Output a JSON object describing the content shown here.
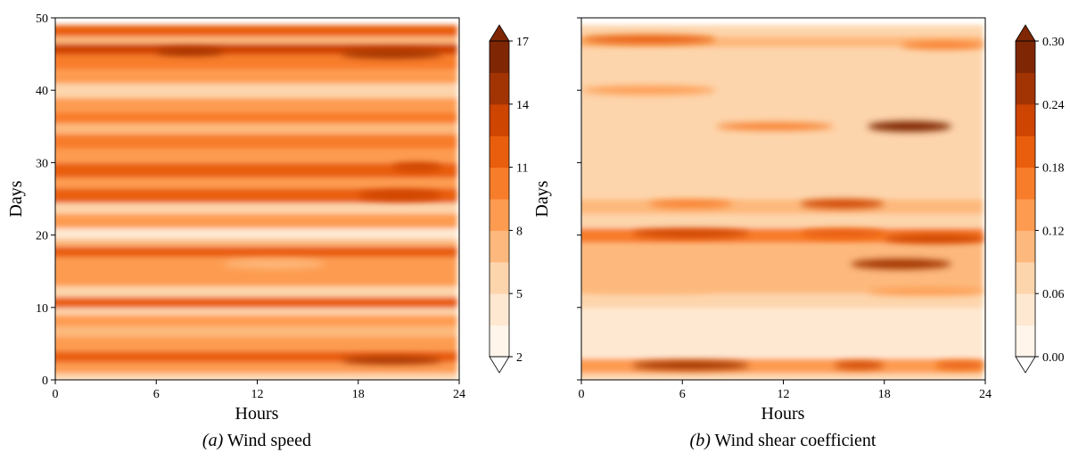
{
  "chart_data": [
    {
      "type": "heatmap",
      "subtype": "filled-contour",
      "caption_letter": "(a)",
      "caption_text": " Wind speed",
      "xlabel": "Hours",
      "ylabel": "Days",
      "xlim": [
        0,
        24
      ],
      "ylim": [
        0,
        50
      ],
      "xticks": [
        0,
        6,
        12,
        18,
        24
      ],
      "yticks": [
        0,
        10,
        20,
        30,
        40,
        50
      ],
      "colorbar": {
        "levels": [
          2,
          3.5,
          5,
          6.5,
          8,
          9.5,
          11,
          12.5,
          14,
          15.5,
          17
        ],
        "tick_values": [
          2,
          5,
          8,
          11,
          14,
          17
        ],
        "extend": "both"
      },
      "bands": [
        {
          "y0": 0,
          "y1": 1,
          "value": 5
        },
        {
          "y0": 1,
          "y1": 2.5,
          "value": 8
        },
        {
          "y0": 2.5,
          "y1": 4,
          "value": 12
        },
        {
          "y0": 4,
          "y1": 6,
          "value": 9
        },
        {
          "y0": 6,
          "y1": 7.5,
          "value": 7
        },
        {
          "y0": 7.5,
          "y1": 9,
          "value": 9
        },
        {
          "y0": 9,
          "y1": 10,
          "value": 6
        },
        {
          "y0": 10,
          "y1": 11.5,
          "value": 11
        },
        {
          "y0": 11.5,
          "y1": 13,
          "value": 6
        },
        {
          "y0": 13,
          "y1": 15,
          "value": 9
        },
        {
          "y0": 15,
          "y1": 17,
          "value": 8
        },
        {
          "y0": 17,
          "y1": 18.5,
          "value": 12
        },
        {
          "y0": 18.5,
          "y1": 19.5,
          "value": 7
        },
        {
          "y0": 19.5,
          "y1": 21,
          "value": 4
        },
        {
          "y0": 21,
          "y1": 23,
          "value": 9
        },
        {
          "y0": 23,
          "y1": 24.5,
          "value": 6
        },
        {
          "y0": 24.5,
          "y1": 26.5,
          "value": 11
        },
        {
          "y0": 26.5,
          "y1": 28,
          "value": 8
        },
        {
          "y0": 28,
          "y1": 30,
          "value": 11
        },
        {
          "y0": 30,
          "y1": 32,
          "value": 9
        },
        {
          "y0": 32,
          "y1": 34,
          "value": 10
        },
        {
          "y0": 34,
          "y1": 35.5,
          "value": 7
        },
        {
          "y0": 35.5,
          "y1": 37,
          "value": 10
        },
        {
          "y0": 37,
          "y1": 39,
          "value": 8
        },
        {
          "y0": 39,
          "y1": 41,
          "value": 6
        },
        {
          "y0": 41,
          "y1": 43,
          "value": 9
        },
        {
          "y0": 43,
          "y1": 45,
          "value": 10
        },
        {
          "y0": 45,
          "y1": 46.5,
          "value": 13
        },
        {
          "y0": 46.5,
          "y1": 47.5,
          "value": 7
        },
        {
          "y0": 47.5,
          "y1": 49,
          "value": 11
        }
      ],
      "spots": [
        {
          "x0": 6,
          "x1": 10,
          "y": 45.3,
          "h": 0.8,
          "value": 14
        },
        {
          "x0": 17,
          "x1": 23,
          "y": 45,
          "h": 1,
          "value": 14
        },
        {
          "x0": 20,
          "x1": 23,
          "y": 29.4,
          "h": 1,
          "value": 13
        },
        {
          "x0": 18,
          "x1": 23,
          "y": 25.5,
          "h": 1.2,
          "value": 13
        },
        {
          "x0": 17,
          "x1": 23,
          "y": 2.7,
          "h": 0.8,
          "value": 14
        },
        {
          "x0": 10,
          "x1": 16,
          "y": 16,
          "h": 1,
          "value": 7
        }
      ]
    },
    {
      "type": "heatmap",
      "subtype": "filled-contour",
      "caption_letter": "(b)",
      "caption_text": " Wind shear coefficient",
      "xlabel": "Hours",
      "ylabel": "Days",
      "xlim": [
        0,
        24
      ],
      "ylim": [
        0,
        50
      ],
      "xticks": [
        0,
        6,
        12,
        18,
        24
      ],
      "yticks": [
        0,
        10,
        20,
        30,
        40,
        50
      ],
      "colorbar": {
        "levels": [
          0.0,
          0.03,
          0.06,
          0.09,
          0.12,
          0.15,
          0.18,
          0.21,
          0.24,
          0.27,
          0.3
        ],
        "tick_values": [
          0.0,
          0.06,
          0.12,
          0.18,
          0.24,
          0.3
        ],
        "tick_labels": [
          "0.00",
          "0.06",
          "0.12",
          "0.18",
          "0.24",
          "0.30"
        ],
        "extend": "both"
      },
      "base_value": 0.07,
      "bands": [
        {
          "y0": 0,
          "y1": 1,
          "value": 0.08
        },
        {
          "y0": 1,
          "y1": 3,
          "value": 0.14
        },
        {
          "y0": 3,
          "y1": 10,
          "value": 0.05
        },
        {
          "y0": 10,
          "y1": 12,
          "value": 0.08
        },
        {
          "y0": 12,
          "y1": 19,
          "value": 0.09
        },
        {
          "y0": 19,
          "y1": 21,
          "value": 0.15
        },
        {
          "y0": 21,
          "y1": 23,
          "value": 0.08
        },
        {
          "y0": 23,
          "y1": 25,
          "value": 0.1
        },
        {
          "y0": 25,
          "y1": 46,
          "value": 0.07
        },
        {
          "y0": 46,
          "y1": 47.5,
          "value": 0.09
        },
        {
          "y0": 47.5,
          "y1": 49,
          "value": 0.07
        }
      ],
      "spots": [
        {
          "x0": 3,
          "x1": 10,
          "y": 2,
          "h": 1,
          "value": 0.24
        },
        {
          "x0": 15,
          "x1": 18,
          "y": 2,
          "h": 0.8,
          "value": 0.22
        },
        {
          "x0": 21,
          "x1": 24,
          "y": 2,
          "h": 0.8,
          "value": 0.18
        },
        {
          "x0": 16,
          "x1": 22,
          "y": 16,
          "h": 1.2,
          "value": 0.24
        },
        {
          "x0": 3,
          "x1": 10,
          "y": 20.2,
          "h": 1,
          "value": 0.22
        },
        {
          "x0": 13,
          "x1": 18,
          "y": 20.2,
          "h": 1,
          "value": 0.2
        },
        {
          "x0": 18,
          "x1": 24,
          "y": 19.5,
          "h": 1,
          "value": 0.22
        },
        {
          "x0": 13,
          "x1": 18,
          "y": 24.3,
          "h": 1,
          "value": 0.22
        },
        {
          "x0": 4,
          "x1": 9,
          "y": 24.3,
          "h": 0.8,
          "value": 0.16
        },
        {
          "x0": 17,
          "x1": 22,
          "y": 35,
          "h": 1.2,
          "value": 0.28
        },
        {
          "x0": 8,
          "x1": 15,
          "y": 35,
          "h": 0.8,
          "value": 0.16
        },
        {
          "x0": 0,
          "x1": 8,
          "y": 40,
          "h": 1,
          "value": 0.13
        },
        {
          "x0": 0,
          "x1": 8,
          "y": 47,
          "h": 1,
          "value": 0.2
        },
        {
          "x0": 19,
          "x1": 24,
          "y": 46.2,
          "h": 0.8,
          "value": 0.16
        },
        {
          "x0": 17,
          "x1": 24,
          "y": 12.2,
          "h": 0.8,
          "value": 0.13
        },
        {
          "x0": 0,
          "x1": 8,
          "y": 12.5,
          "h": 0.8,
          "value": 0.11
        }
      ]
    }
  ],
  "colors": {
    "cmap": [
      "#fff5eb",
      "#fee6ce",
      "#fdd0a2",
      "#fdae6b",
      "#fd8d3c",
      "#f16913",
      "#d94801",
      "#a63603",
      "#7f2704"
    ]
  }
}
